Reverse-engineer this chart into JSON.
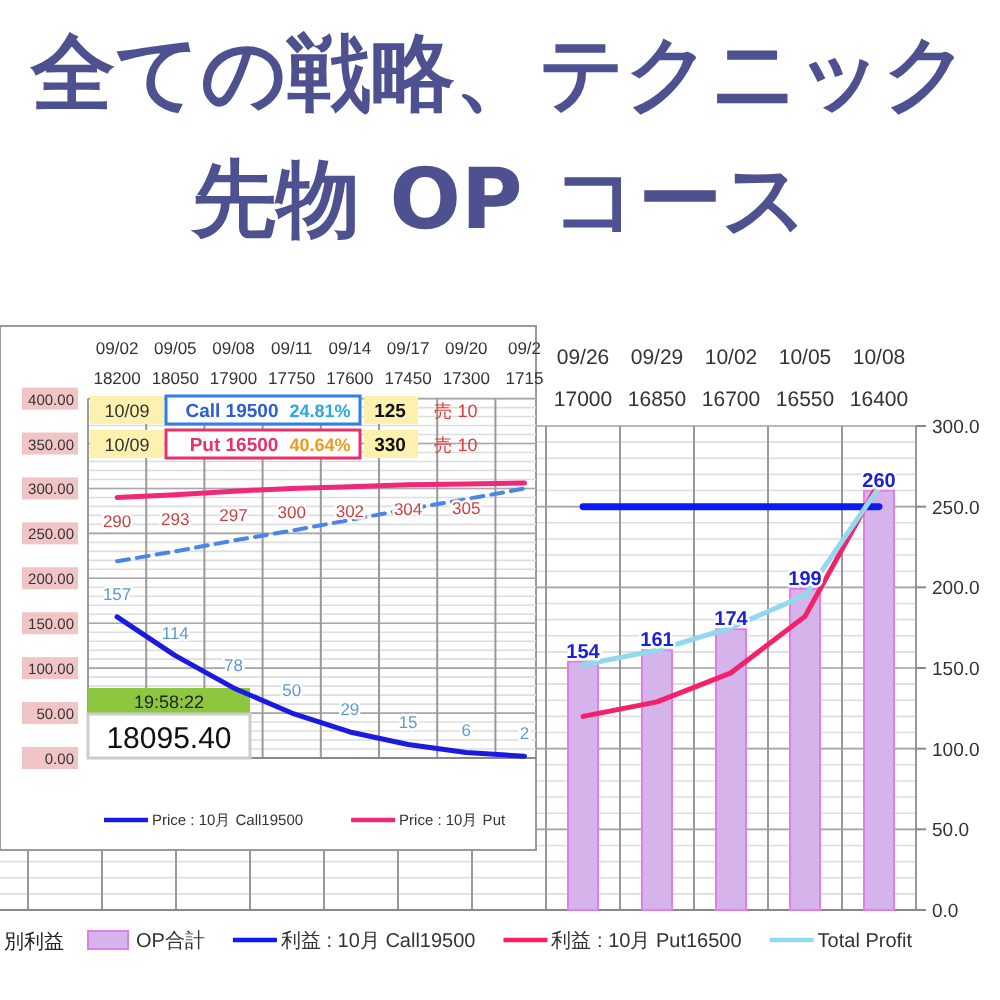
{
  "chart_data": [
    {
      "type": "bar",
      "title": "全ての戦略、テクニック",
      "subtitle": "先物 OP コース",
      "categories": [
        null,
        null,
        null,
        null,
        null,
        null,
        null,
        null,
        "09/26\n17000",
        "09/29\n16850",
        "10/02\n16700",
        "10/05\n16550",
        "10/08\n16400"
      ],
      "series": [
        {
          "name": "OP合計",
          "type": "bar",
          "color": "#d4b4ea",
          "values": [
            null,
            null,
            null,
            null,
            null,
            null,
            null,
            null,
            154,
            161,
            174,
            199,
            260
          ],
          "value_labels": [
            null,
            null,
            null,
            null,
            null,
            null,
            null,
            null,
            "154",
            "161",
            "174",
            "199",
            "260"
          ]
        },
        {
          "name": "利益 : 10月 Call19500",
          "type": "line",
          "color": "#0b1cf2",
          "values": [
            null,
            null,
            null,
            null,
            null,
            null,
            null,
            null,
            250,
            250,
            250,
            250,
            250
          ]
        },
        {
          "name": "利益 : 10月 Put16500",
          "type": "line",
          "color": "#f5206a",
          "values": [
            null,
            null,
            null,
            null,
            null,
            null,
            null,
            null,
            120,
            129,
            147,
            182,
            265
          ]
        },
        {
          "name": "Total Profit",
          "type": "line",
          "color": "#92d9f0",
          "values": [
            null,
            null,
            null,
            null,
            null,
            null,
            null,
            null,
            152,
            161,
            175,
            195,
            262
          ]
        }
      ],
      "ylim": [
        0,
        300
      ],
      "yticks": [
        {
          "value": 0,
          "label": "0.0"
        },
        {
          "value": 50,
          "label": "50.0"
        },
        {
          "value": 100,
          "label": "100.0"
        },
        {
          "value": 150,
          "label": "150.0"
        },
        {
          "value": 200,
          "label": "200.0"
        },
        {
          "value": 250,
          "label": "250.0"
        },
        {
          "value": 300,
          "label": "300.0"
        }
      ],
      "grid": true,
      "legend": "bottom",
      "annotations": [
        "別利益"
      ]
    },
    {
      "type": "line",
      "categories": [
        "09/02\n18200",
        "09/05\n18050",
        "09/08\n17900",
        "09/11\n17750",
        "09/14\n17600",
        "09/17\n17450",
        "09/20\n17300",
        "09/2\n1715"
      ],
      "series": [
        {
          "name": "Price : 10月 Call19500",
          "color": "#1b1be0",
          "values": [
            157,
            114,
            78,
            50,
            29,
            15,
            6,
            2
          ],
          "value_labels": [
            "157",
            "114",
            "78",
            "50",
            "29",
            "15",
            "6",
            "2"
          ]
        },
        {
          "name": "Price : 10月 Put",
          "color": "#f0287a",
          "values": [
            290,
            293,
            297,
            300,
            302,
            304,
            305,
            306
          ],
          "value_labels": [
            "290",
            "293",
            "297",
            "300",
            "302",
            "304",
            "305",
            null
          ]
        },
        {
          "color": "#4d84ea",
          "line_style": "dashed",
          "values": [
            219,
            230,
            242,
            253,
            265,
            277,
            288,
            300
          ]
        }
      ],
      "ylim": [
        0,
        400
      ],
      "yticks": [
        {
          "value": 0,
          "label": "0.00"
        },
        {
          "value": 50,
          "label": "50.00"
        },
        {
          "value": 100,
          "label": "100.00"
        },
        {
          "value": 150,
          "label": "150.00"
        },
        {
          "value": 200,
          "label": "200.00"
        },
        {
          "value": 250,
          "label": "250.00"
        },
        {
          "value": 300,
          "label": "300.00"
        },
        {
          "value": 350,
          "label": "350.00"
        },
        {
          "value": 400,
          "label": "400.00"
        }
      ],
      "grid": true,
      "legend": "bottom",
      "annotations": [
        "10/09",
        "Call 19500",
        "24.81%",
        "125",
        "売 10",
        "10/09",
        "Put 16500",
        "40.64%",
        "330",
        "売 10",
        "19:58:22",
        "18095.40"
      ]
    }
  ]
}
